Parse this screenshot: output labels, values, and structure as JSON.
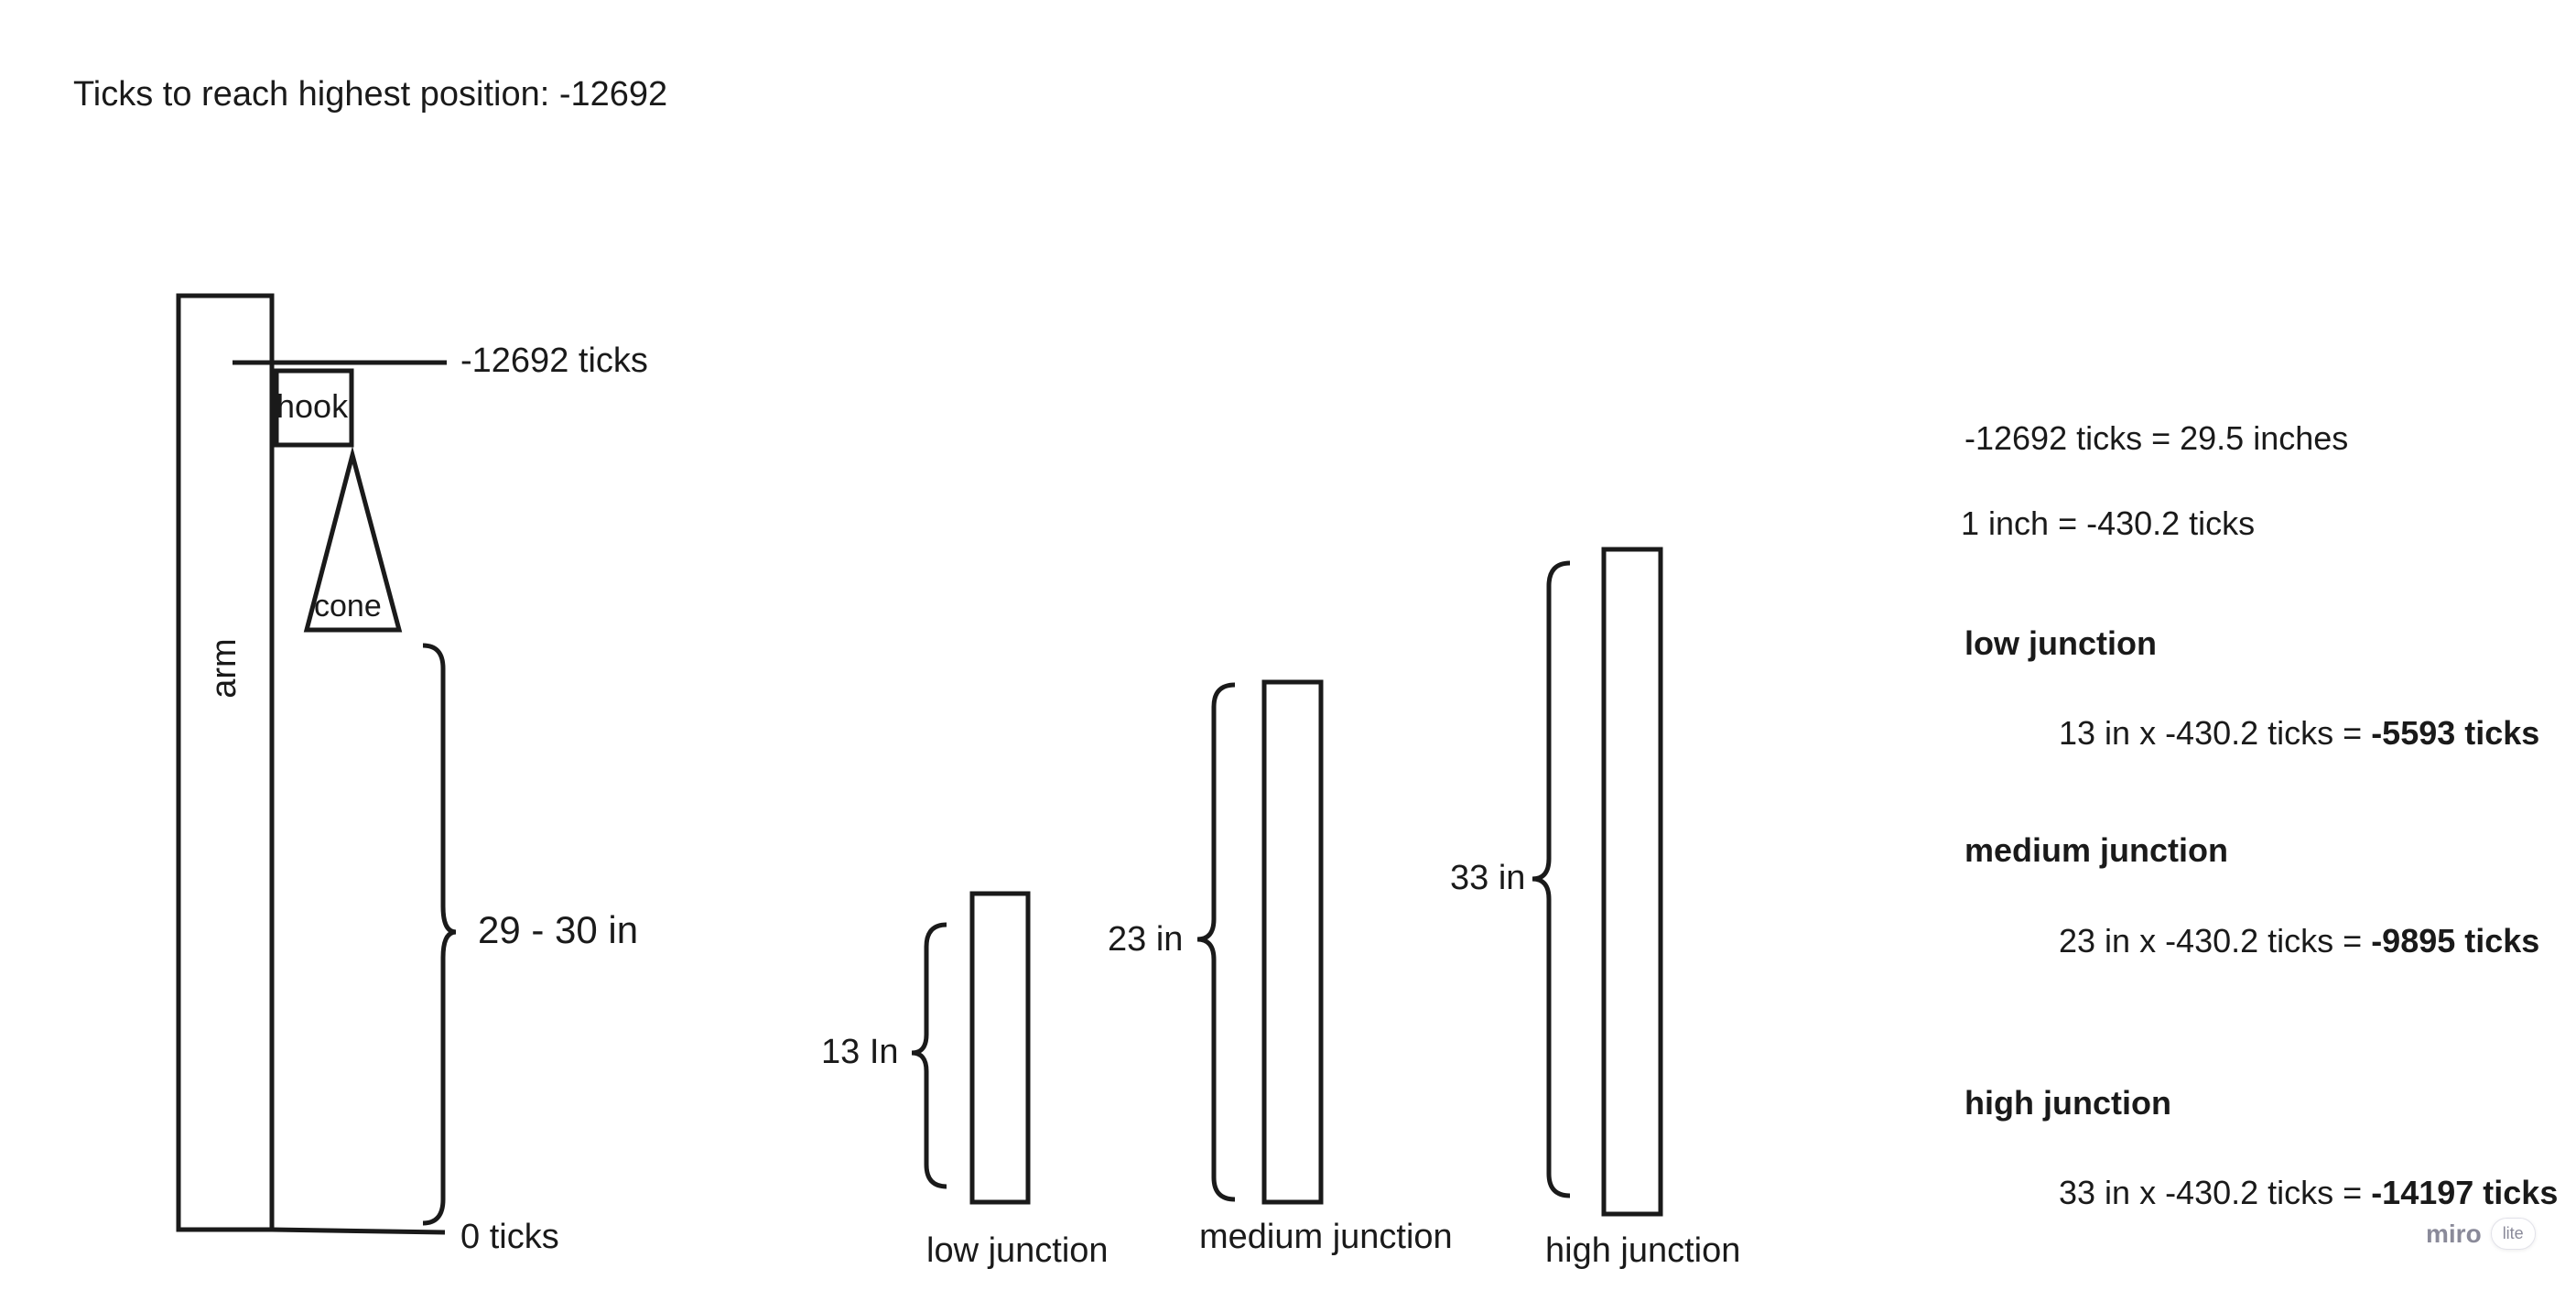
{
  "header": {
    "title": "Ticks to reach highest position: -12692"
  },
  "arm_diagram": {
    "arm_label": "arm",
    "hook_label": "hook",
    "cone_label": "cone",
    "top_tick_label": "-12692 ticks",
    "range_label": "29 - 30 in",
    "bottom_tick_label": "0 ticks"
  },
  "junctions": [
    {
      "name": "low junction",
      "height_label": "13 In",
      "height_in": 13
    },
    {
      "name": "medium junction",
      "height_label": "23 in",
      "height_in": 23
    },
    {
      "name": "high junction",
      "height_label": "33 in",
      "height_in": 33
    }
  ],
  "notes": {
    "conversion_1": "-12692 ticks = 29.5 inches",
    "conversion_2": "1 inch = -430.2 ticks",
    "low": {
      "heading": "low junction",
      "formula": "13 in x -430.2 ticks = ",
      "result": "-5593 ticks"
    },
    "medium": {
      "heading": "medium junction",
      "formula": "23 in x -430.2 ticks = ",
      "result": "-9895 ticks"
    },
    "high": {
      "heading": "high junction",
      "formula": "33 in x -430.2 ticks = ",
      "result": "-14197 ticks"
    }
  },
  "badge": {
    "logo": "miro",
    "tag": "lite"
  }
}
